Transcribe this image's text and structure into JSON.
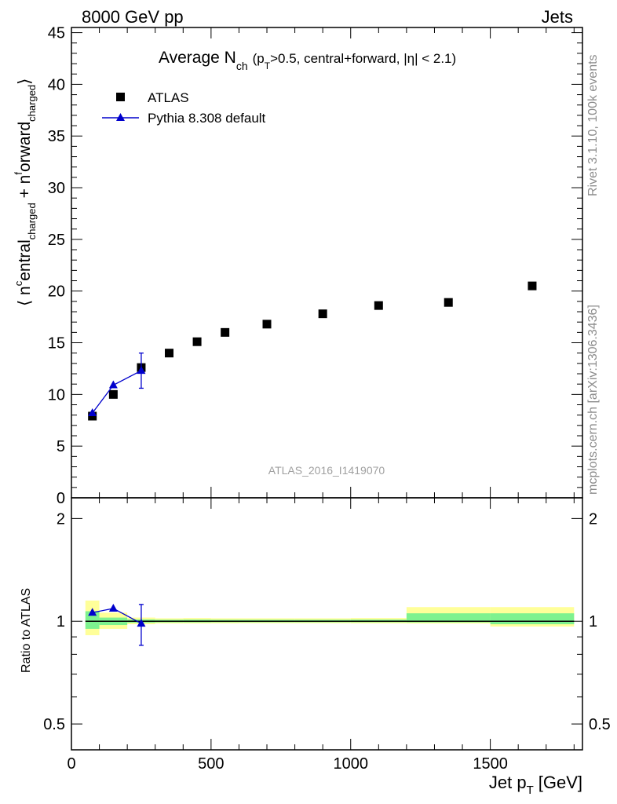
{
  "header": {
    "left": "8000 GeV pp",
    "right": "Jets"
  },
  "side_labels": {
    "rivet": "Rivet 3.1.10,  100k events",
    "mcplots": "mcplots.cern.ch [arXiv:1306.3436]"
  },
  "watermark": "ATLAS_2016_I1419070",
  "colors": {
    "data": "#000000",
    "mc": "#0000cc",
    "band_inner": "#7ef28f",
    "band_outer": "#ffff99"
  },
  "chart_data": [
    {
      "type": "scatter",
      "title": "Average N",
      "title_sub": "ch",
      "title_detail": "(p",
      "title_detail_sub": "T",
      "title_detail_rest": ">0.5, central+forward, |η| < 2.1)",
      "ylabel_parts": [
        "⟨ n",
        "c",
        "entral",
        "charged",
        " + n",
        "f",
        "orward",
        "charged",
        "⟩"
      ],
      "xlim": [
        0,
        1830
      ],
      "ylim": [
        0,
        45.5
      ],
      "yticks": [
        0,
        5,
        10,
        15,
        20,
        25,
        30,
        35,
        40,
        45
      ],
      "grid": false,
      "legend_placement": "top-left",
      "series": [
        {
          "name": "ATLAS",
          "marker": "square",
          "x": [
            75,
            150,
            250,
            350,
            450,
            550,
            700,
            900,
            1100,
            1350,
            1650
          ],
          "y": [
            7.9,
            10.0,
            12.6,
            14.0,
            15.1,
            16.0,
            16.8,
            17.8,
            18.6,
            18.9,
            20.5
          ]
        },
        {
          "name": "Pythia 8.308 default",
          "marker": "triangle",
          "x": [
            75,
            150,
            250
          ],
          "y": [
            8.2,
            10.9,
            12.3
          ],
          "yerr": [
            0.15,
            0.2,
            1.7
          ]
        }
      ]
    },
    {
      "type": "scatter",
      "ylabel": "Ratio to ATLAS",
      "xlabel": "Jet p",
      "xlabel_sub": "T",
      "xlabel_unit": "[GeV]",
      "scale": "log",
      "xlim": [
        0,
        1830
      ],
      "ylim": [
        0.42,
        2.3
      ],
      "yticks": [
        0.5,
        1,
        2
      ],
      "ytick_labels": [
        "0.5",
        "1",
        "2"
      ],
      "xticks": [
        0,
        500,
        1000,
        1500
      ],
      "xtick_labels": [
        "0",
        "500",
        "1000",
        "1500"
      ],
      "bands": [
        {
          "x0": 50,
          "x1": 100,
          "outer": [
            0.91,
            1.15
          ],
          "inner": [
            0.95,
            1.07
          ]
        },
        {
          "x0": 100,
          "x1": 200,
          "outer": [
            0.95,
            1.06
          ],
          "inner": [
            0.975,
            1.025
          ]
        },
        {
          "x0": 200,
          "x1": 300,
          "outer": [
            0.98,
            1.025
          ],
          "inner": [
            0.99,
            1.012
          ]
        },
        {
          "x0": 300,
          "x1": 400,
          "outer": [
            0.985,
            1.02
          ],
          "inner": [
            0.992,
            1.01
          ]
        },
        {
          "x0": 400,
          "x1": 500,
          "outer": [
            0.985,
            1.022
          ],
          "inner": [
            0.992,
            1.011
          ]
        },
        {
          "x0": 500,
          "x1": 600,
          "outer": [
            0.986,
            1.02
          ],
          "inner": [
            0.993,
            1.01
          ]
        },
        {
          "x0": 600,
          "x1": 800,
          "outer": [
            0.987,
            1.02
          ],
          "inner": [
            0.993,
            1.01
          ]
        },
        {
          "x0": 800,
          "x1": 1000,
          "outer": [
            0.987,
            1.02
          ],
          "inner": [
            0.993,
            1.01
          ]
        },
        {
          "x0": 1000,
          "x1": 1200,
          "outer": [
            0.986,
            1.022
          ],
          "inner": [
            0.993,
            1.011
          ]
        },
        {
          "x0": 1200,
          "x1": 1500,
          "outer": [
            0.985,
            1.1
          ],
          "inner": [
            0.992,
            1.055
          ]
        },
        {
          "x0": 1500,
          "x1": 1800,
          "outer": [
            0.965,
            1.1
          ],
          "inner": [
            0.98,
            1.055
          ]
        }
      ],
      "series": [
        {
          "name": "Pythia 8.308 default",
          "x": [
            75,
            150,
            250
          ],
          "y": [
            1.06,
            1.09,
            0.985
          ],
          "yerr": [
            0.012,
            0.02,
            0.135
          ]
        }
      ]
    }
  ]
}
